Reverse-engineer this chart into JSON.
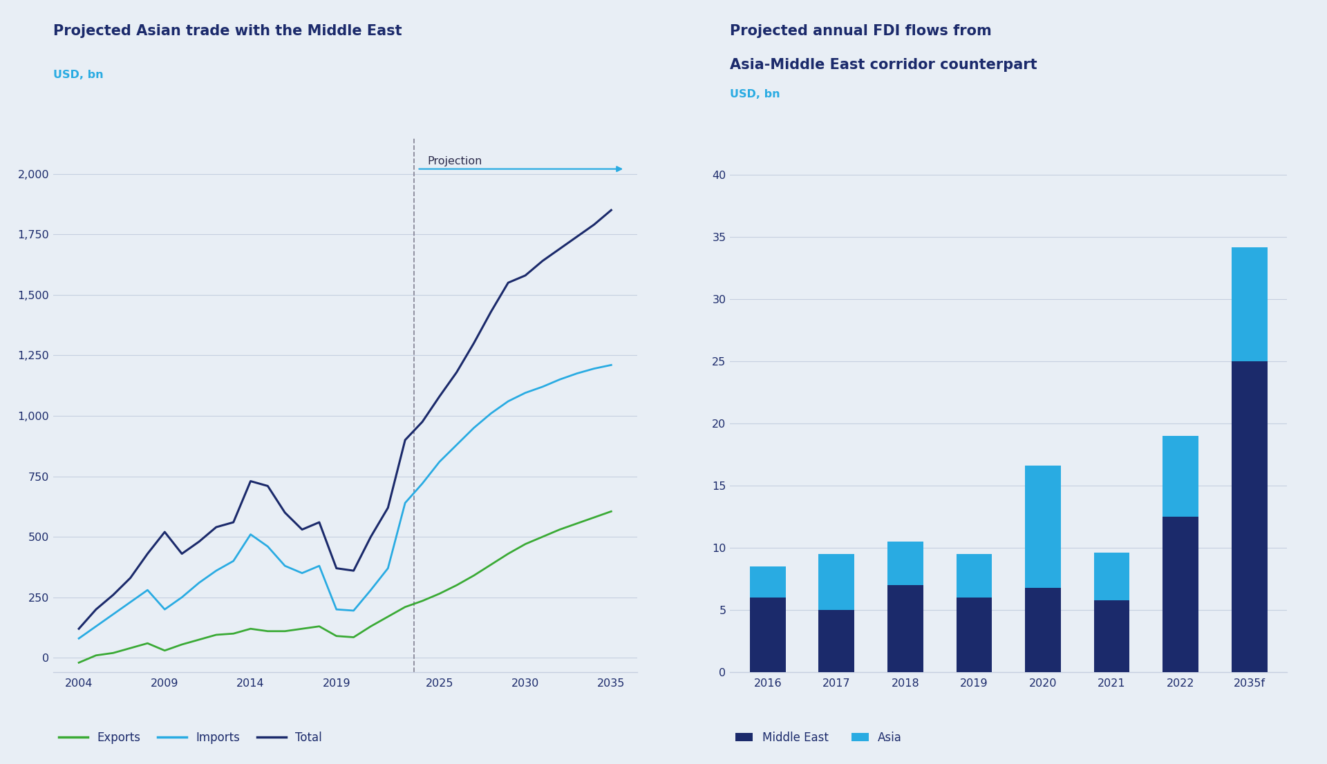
{
  "bg_color": "#e8eef5",
  "chart1": {
    "title": "Projected Asian trade with the Middle East",
    "ylabel": "USD, bn",
    "ylabel_color": "#29abe2",
    "xlim": [
      2002.5,
      2036.5
    ],
    "ylim": [
      -60,
      2150
    ],
    "yticks": [
      0,
      250,
      500,
      750,
      1000,
      1250,
      1500,
      1750,
      2000
    ],
    "xticks": [
      2004,
      2009,
      2014,
      2019,
      2025,
      2030,
      2035
    ],
    "projection_x": 2023.5,
    "projection_label": "Projection",
    "arrow_color": "#29abe2",
    "exports_color": "#3aaa35",
    "imports_color": "#29abe2",
    "total_color": "#1b2a6b",
    "exports_label": "Exports",
    "imports_label": "Imports",
    "total_label": "Total",
    "exports_years": [
      2004,
      2005,
      2006,
      2007,
      2008,
      2009,
      2010,
      2011,
      2012,
      2013,
      2014,
      2015,
      2016,
      2017,
      2018,
      2019,
      2020,
      2021,
      2022,
      2023,
      2024,
      2025,
      2026,
      2027,
      2028,
      2029,
      2030,
      2031,
      2032,
      2033,
      2034,
      2035
    ],
    "exports_values": [
      -20,
      10,
      20,
      40,
      60,
      30,
      55,
      75,
      95,
      100,
      120,
      110,
      110,
      120,
      130,
      90,
      85,
      130,
      170,
      210,
      235,
      265,
      300,
      340,
      385,
      430,
      470,
      500,
      530,
      555,
      580,
      605
    ],
    "imports_years": [
      2004,
      2005,
      2006,
      2007,
      2008,
      2009,
      2010,
      2011,
      2012,
      2013,
      2014,
      2015,
      2016,
      2017,
      2018,
      2019,
      2020,
      2021,
      2022,
      2023,
      2024,
      2025,
      2026,
      2027,
      2028,
      2029,
      2030,
      2031,
      2032,
      2033,
      2034,
      2035
    ],
    "imports_values": [
      80,
      130,
      180,
      230,
      280,
      200,
      250,
      310,
      360,
      400,
      510,
      460,
      380,
      350,
      380,
      200,
      195,
      280,
      370,
      640,
      720,
      810,
      880,
      950,
      1010,
      1060,
      1095,
      1120,
      1150,
      1175,
      1195,
      1210
    ],
    "total_years": [
      2004,
      2005,
      2006,
      2007,
      2008,
      2009,
      2010,
      2011,
      2012,
      2013,
      2014,
      2015,
      2016,
      2017,
      2018,
      2019,
      2020,
      2021,
      2022,
      2023,
      2024,
      2025,
      2026,
      2027,
      2028,
      2029,
      2030,
      2031,
      2032,
      2033,
      2034,
      2035
    ],
    "total_values": [
      120,
      200,
      260,
      330,
      430,
      520,
      430,
      480,
      540,
      560,
      730,
      710,
      600,
      530,
      560,
      370,
      360,
      500,
      620,
      900,
      975,
      1080,
      1180,
      1300,
      1430,
      1550,
      1580,
      1640,
      1690,
      1740,
      1790,
      1850
    ]
  },
  "chart2": {
    "title1": "Projected annual FDI flows from",
    "title2": "Asia-Middle East corridor counterpart",
    "ylabel": "USD, bn",
    "ylabel_color": "#29abe2",
    "ylim": [
      0,
      43
    ],
    "yticks": [
      0,
      5,
      10,
      15,
      20,
      25,
      30,
      35,
      40
    ],
    "categories": [
      "2016",
      "2017",
      "2018",
      "2019",
      "2020",
      "2021",
      "2022",
      "2035f"
    ],
    "middle_east": [
      6.0,
      5.0,
      7.0,
      6.0,
      6.8,
      5.8,
      12.5,
      25.0
    ],
    "asia": [
      2.5,
      4.5,
      3.5,
      3.5,
      9.8,
      3.8,
      6.5,
      9.2
    ],
    "middle_east_color": "#1b2a6b",
    "asia_color": "#29abe2",
    "middle_east_label": "Middle East",
    "asia_label": "Asia"
  }
}
